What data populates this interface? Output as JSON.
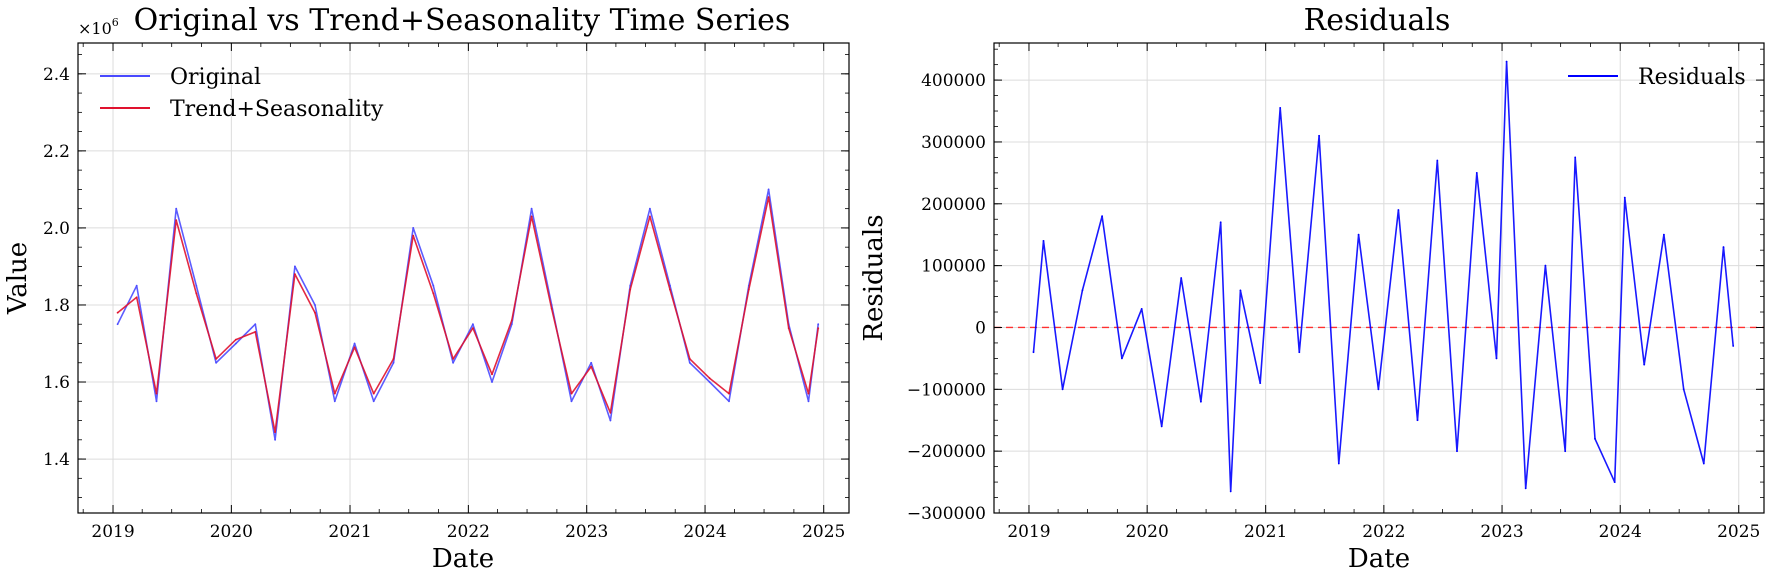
{
  "chart_data": [
    {
      "type": "line",
      "title": "Original vs Trend+Seasonality Time Series",
      "xlabel": "Date",
      "ylabel": "Value",
      "y_offset_text": "×10",
      "y_offset_exponent": "6",
      "xlim": [
        "2018-09-15",
        "2025-03-20"
      ],
      "ylim": [
        1.26,
        2.48
      ],
      "x_ticks": [
        "2019",
        "2020",
        "2021",
        "2022",
        "2023",
        "2024",
        "2025"
      ],
      "y_ticks": [
        1.4,
        1.6,
        1.8,
        2.0,
        2.2,
        2.4
      ],
      "y_tick_labels": [
        "1.4",
        "1.6",
        "1.8",
        "2.0",
        "2.2",
        "2.4"
      ],
      "grid": true,
      "legend_position": "top-left",
      "series": [
        {
          "name": "Original",
          "color": "#4a4aff",
          "x": [
            "2019-01",
            "2019-03",
            "2019-05",
            "2019-07",
            "2019-09",
            "2019-11",
            "2020-01",
            "2020-03",
            "2020-05",
            "2020-07",
            "2020-09",
            "2020-11",
            "2021-01",
            "2021-03",
            "2021-05",
            "2021-07",
            "2021-09",
            "2021-11",
            "2022-01",
            "2022-03",
            "2022-05",
            "2022-07",
            "2022-09",
            "2022-11",
            "2023-01",
            "2023-03",
            "2023-05",
            "2023-07",
            "2023-09",
            "2023-11",
            "2024-01",
            "2024-03",
            "2024-05",
            "2024-07",
            "2024-09",
            "2024-11",
            "2024-12"
          ],
          "values": [
            1.75,
            1.85,
            1.55,
            2.05,
            1.85,
            1.65,
            1.7,
            1.75,
            1.45,
            1.9,
            1.8,
            1.55,
            1.7,
            1.55,
            1.65,
            2.0,
            1.85,
            1.65,
            1.75,
            1.6,
            1.75,
            2.05,
            1.8,
            1.55,
            1.65,
            1.5,
            1.85,
            2.05,
            1.85,
            1.65,
            1.6,
            1.55,
            1.85,
            2.1,
            1.75,
            1.55,
            1.75
          ]
        },
        {
          "name": "Trend+Seasonality",
          "color": "#e0122e",
          "x": [
            "2019-01",
            "2019-03",
            "2019-05",
            "2019-07",
            "2019-09",
            "2019-11",
            "2020-01",
            "2020-03",
            "2020-05",
            "2020-07",
            "2020-09",
            "2020-11",
            "2021-01",
            "2021-03",
            "2021-05",
            "2021-07",
            "2021-09",
            "2021-11",
            "2022-01",
            "2022-03",
            "2022-05",
            "2022-07",
            "2022-09",
            "2022-11",
            "2023-01",
            "2023-03",
            "2023-05",
            "2023-07",
            "2023-09",
            "2023-11",
            "2024-01",
            "2024-03",
            "2024-05",
            "2024-07",
            "2024-09",
            "2024-11",
            "2024-12"
          ],
          "values": [
            1.78,
            1.82,
            1.57,
            2.02,
            1.83,
            1.66,
            1.71,
            1.73,
            1.47,
            1.88,
            1.78,
            1.57,
            1.69,
            1.57,
            1.66,
            1.98,
            1.83,
            1.66,
            1.74,
            1.62,
            1.76,
            2.03,
            1.79,
            1.57,
            1.64,
            1.52,
            1.84,
            2.03,
            1.84,
            1.66,
            1.61,
            1.57,
            1.84,
            2.08,
            1.74,
            1.57,
            1.74
          ]
        }
      ]
    },
    {
      "type": "line",
      "title": "Residuals",
      "xlabel": "Date",
      "ylabel": "Residuals",
      "xlim": [
        "2018-09-15",
        "2025-03-20"
      ],
      "ylim": [
        -300000,
        460000
      ],
      "x_ticks": [
        "2019",
        "2020",
        "2021",
        "2022",
        "2023",
        "2024",
        "2025"
      ],
      "y_ticks": [
        -300000,
        -200000,
        -100000,
        0,
        100000,
        200000,
        300000,
        400000
      ],
      "y_tick_labels": [
        "−300000",
        "−200000",
        "−100000",
        "0",
        "100000",
        "200000",
        "300000",
        "400000"
      ],
      "grid": true,
      "legend_position": "top-right",
      "zero_line": {
        "value": 0,
        "color": "#ff3030",
        "style": "dashed"
      },
      "series": [
        {
          "name": "Residuals",
          "color": "#0000ff",
          "x": [
            "2019-01",
            "2019-02",
            "2019-04",
            "2019-06",
            "2019-08",
            "2019-10",
            "2019-12",
            "2020-02",
            "2020-04",
            "2020-06",
            "2020-08",
            "2020-09",
            "2020-10",
            "2020-12",
            "2021-02",
            "2021-04",
            "2021-06",
            "2021-08",
            "2021-10",
            "2021-12",
            "2022-02",
            "2022-04",
            "2022-06",
            "2022-08",
            "2022-10",
            "2022-12",
            "2023-01",
            "2023-03",
            "2023-05",
            "2023-07",
            "2023-08",
            "2023-10",
            "2023-12",
            "2024-01",
            "2024-03",
            "2024-05",
            "2024-07",
            "2024-09",
            "2024-11",
            "2024-12"
          ],
          "values": [
            -40000,
            140000,
            -100000,
            60000,
            180000,
            -50000,
            30000,
            -160000,
            80000,
            -120000,
            170000,
            -265000,
            60000,
            -90000,
            355000,
            -40000,
            310000,
            -220000,
            150000,
            -100000,
            190000,
            -150000,
            270000,
            -200000,
            250000,
            -50000,
            430000,
            -260000,
            100000,
            -200000,
            275000,
            -180000,
            -250000,
            210000,
            -60000,
            150000,
            -100000,
            -220000,
            130000,
            -30000
          ]
        }
      ]
    }
  ]
}
